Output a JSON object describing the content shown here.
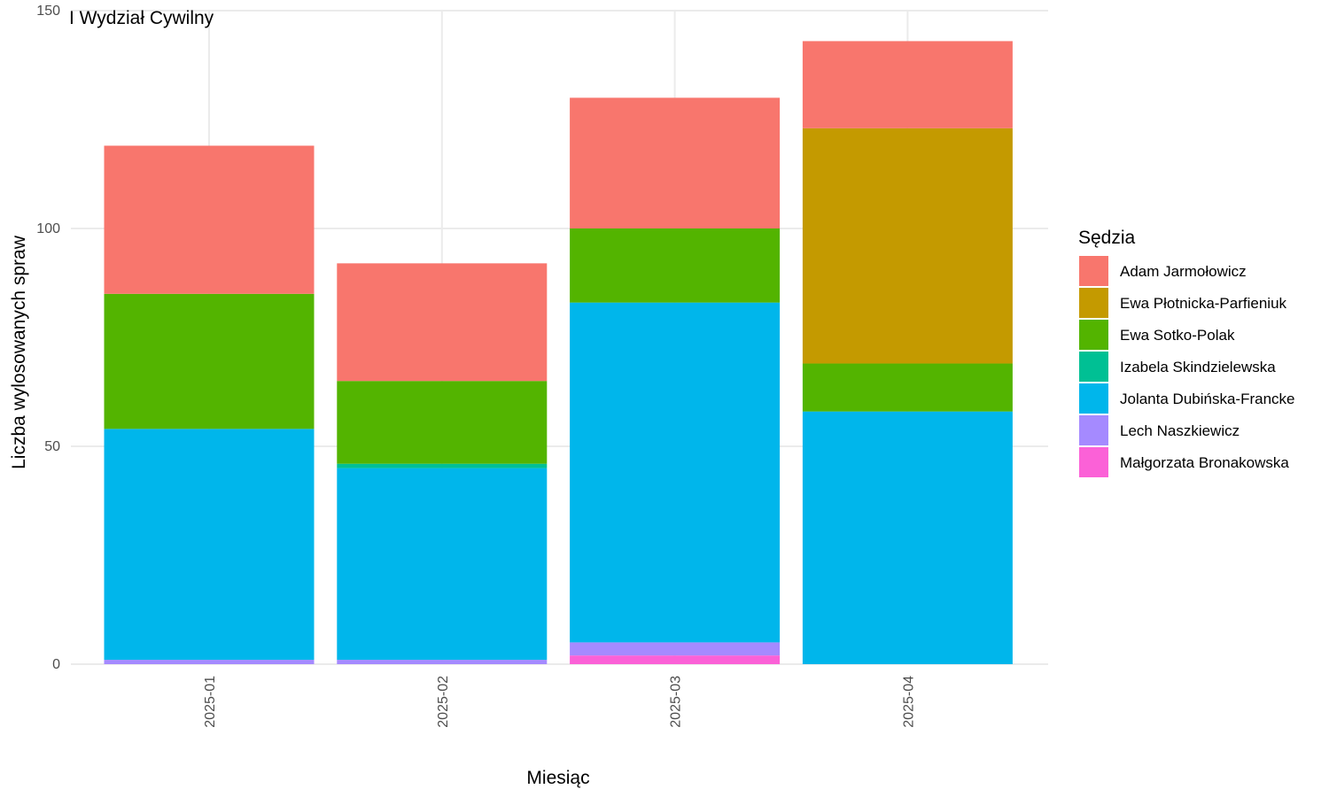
{
  "chart_data": {
    "type": "bar",
    "stacked": true,
    "title": "I Wydział Cywilny",
    "xlabel": "Miesiąc",
    "ylabel": "Liczba wylosowanych spraw",
    "ylim": [
      0,
      150
    ],
    "yticks": [
      0,
      50,
      100,
      150
    ],
    "grid": true,
    "legend_position": "right",
    "legend_title": "Sędzia",
    "categories": [
      "2025-01",
      "2025-02",
      "2025-03",
      "2025-04"
    ],
    "series": [
      {
        "name": "Adam Jarmołowicz",
        "color": "#F8766D",
        "values": [
          34,
          27,
          30,
          20
        ]
      },
      {
        "name": "Ewa Płotnicka-Parfieniuk",
        "color": "#C49A00",
        "values": [
          0,
          0,
          0,
          54
        ]
      },
      {
        "name": "Ewa Sotko-Polak",
        "color": "#53B400",
        "values": [
          31,
          19,
          17,
          11
        ]
      },
      {
        "name": "Izabela Skindzielewska",
        "color": "#00C094",
        "values": [
          0,
          1,
          0,
          0
        ]
      },
      {
        "name": "Jolanta Dubińska-Francke",
        "color": "#00B6EB",
        "values": [
          53,
          44,
          78,
          58
        ]
      },
      {
        "name": "Lech Naszkiewicz",
        "color": "#A58AFF",
        "values": [
          1,
          1,
          3,
          0
        ]
      },
      {
        "name": "Małgorzata Bronakowska",
        "color": "#FB61D7",
        "values": [
          0,
          0,
          2,
          0
        ]
      }
    ]
  }
}
